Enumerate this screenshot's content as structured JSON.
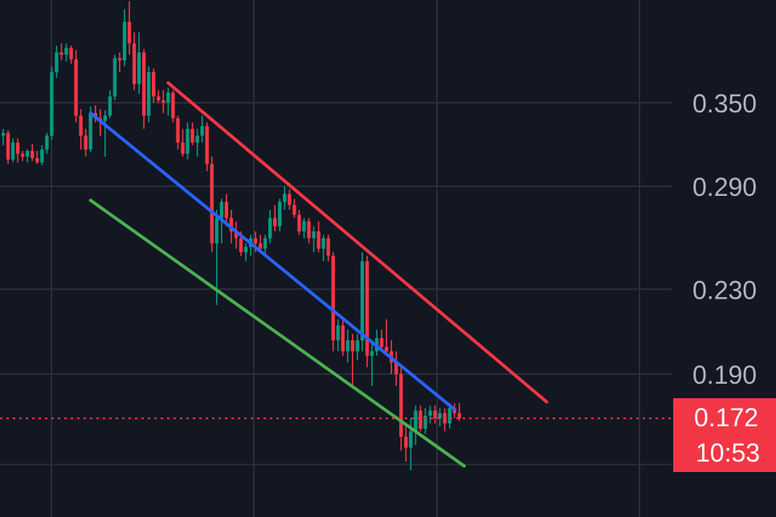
{
  "chart_data": {
    "type": "candlestick",
    "y_scale": "log",
    "ylim": [
      0.155,
      0.445
    ],
    "grid": true,
    "y_ticks": [
      {
        "value": 0.35,
        "label": "0.350"
      },
      {
        "value": 0.29,
        "label": "0.290"
      },
      {
        "value": 0.23,
        "label": "0.230"
      },
      {
        "value": 0.19,
        "label": "0.190"
      }
    ],
    "last_price": {
      "value": 0.172,
      "label": "0.172",
      "countdown": "10:53",
      "color": "#f23645"
    },
    "colors": {
      "up": "#089981",
      "down": "#f23645",
      "grid": "#2a2e39",
      "background": "#131722"
    },
    "candles": [
      [
        0.325,
        0.33,
        0.318,
        0.327
      ],
      [
        0.327,
        0.329,
        0.305,
        0.308
      ],
      [
        0.308,
        0.323,
        0.306,
        0.32
      ],
      [
        0.32,
        0.323,
        0.306,
        0.312
      ],
      [
        0.312,
        0.314,
        0.307,
        0.31
      ],
      [
        0.31,
        0.315,
        0.306,
        0.314
      ],
      [
        0.314,
        0.319,
        0.307,
        0.309
      ],
      [
        0.309,
        0.314,
        0.305,
        0.306
      ],
      [
        0.306,
        0.318,
        0.304,
        0.315
      ],
      [
        0.315,
        0.327,
        0.312,
        0.325
      ],
      [
        0.325,
        0.38,
        0.322,
        0.375
      ],
      [
        0.375,
        0.398,
        0.37,
        0.392
      ],
      [
        0.392,
        0.4,
        0.385,
        0.39
      ],
      [
        0.39,
        0.4,
        0.384,
        0.396
      ],
      [
        0.396,
        0.398,
        0.382,
        0.386
      ],
      [
        0.386,
        0.394,
        0.335,
        0.34
      ],
      [
        0.34,
        0.345,
        0.315,
        0.325
      ],
      [
        0.325,
        0.33,
        0.31,
        0.315
      ],
      [
        0.315,
        0.347,
        0.313,
        0.342
      ],
      [
        0.342,
        0.348,
        0.335,
        0.338
      ],
      [
        0.338,
        0.345,
        0.325,
        0.336
      ],
      [
        0.336,
        0.344,
        0.31,
        0.34
      ],
      [
        0.34,
        0.36,
        0.338,
        0.355
      ],
      [
        0.355,
        0.39,
        0.352,
        0.387
      ],
      [
        0.387,
        0.392,
        0.375,
        0.385
      ],
      [
        0.385,
        0.432,
        0.38,
        0.42
      ],
      [
        0.42,
        0.44,
        0.39,
        0.4
      ],
      [
        0.4,
        0.41,
        0.36,
        0.365
      ],
      [
        0.365,
        0.41,
        0.357,
        0.392
      ],
      [
        0.392,
        0.395,
        0.33,
        0.34
      ],
      [
        0.34,
        0.38,
        0.335,
        0.375
      ],
      [
        0.375,
        0.378,
        0.35,
        0.355
      ],
      [
        0.355,
        0.36,
        0.35,
        0.352
      ],
      [
        0.352,
        0.36,
        0.342,
        0.35
      ],
      [
        0.35,
        0.362,
        0.34,
        0.358
      ],
      [
        0.358,
        0.36,
        0.335,
        0.338
      ],
      [
        0.338,
        0.34,
        0.315,
        0.32
      ],
      [
        0.32,
        0.33,
        0.31,
        0.312
      ],
      [
        0.312,
        0.335,
        0.308,
        0.33
      ],
      [
        0.33,
        0.335,
        0.318,
        0.32
      ],
      [
        0.32,
        0.33,
        0.31,
        0.325
      ],
      [
        0.325,
        0.34,
        0.32,
        0.332
      ],
      [
        0.332,
        0.335,
        0.3,
        0.305
      ],
      [
        0.305,
        0.31,
        0.25,
        0.255
      ],
      [
        0.255,
        0.275,
        0.222,
        0.27
      ],
      [
        0.27,
        0.282,
        0.255,
        0.28
      ],
      [
        0.28,
        0.285,
        0.265,
        0.27
      ],
      [
        0.27,
        0.275,
        0.255,
        0.262
      ],
      [
        0.262,
        0.268,
        0.252,
        0.258
      ],
      [
        0.258,
        0.262,
        0.248,
        0.25
      ],
      [
        0.25,
        0.255,
        0.245,
        0.253
      ],
      [
        0.253,
        0.26,
        0.248,
        0.258
      ],
      [
        0.258,
        0.262,
        0.25,
        0.255
      ],
      [
        0.255,
        0.26,
        0.25,
        0.252
      ],
      [
        0.252,
        0.26,
        0.248,
        0.258
      ],
      [
        0.258,
        0.275,
        0.255,
        0.27
      ],
      [
        0.27,
        0.278,
        0.262,
        0.265
      ],
      [
        0.265,
        0.282,
        0.262,
        0.28
      ],
      [
        0.28,
        0.29,
        0.275,
        0.285
      ],
      [
        0.285,
        0.288,
        0.275,
        0.278
      ],
      [
        0.278,
        0.282,
        0.27,
        0.272
      ],
      [
        0.272,
        0.275,
        0.26,
        0.262
      ],
      [
        0.262,
        0.27,
        0.258,
        0.268
      ],
      [
        0.268,
        0.27,
        0.255,
        0.258
      ],
      [
        0.258,
        0.265,
        0.25,
        0.262
      ],
      [
        0.262,
        0.268,
        0.25,
        0.252
      ],
      [
        0.252,
        0.26,
        0.245,
        0.258
      ],
      [
        0.258,
        0.26,
        0.245,
        0.248
      ],
      [
        0.248,
        0.25,
        0.2,
        0.205
      ],
      [
        0.205,
        0.215,
        0.2,
        0.212
      ],
      [
        0.212,
        0.215,
        0.198,
        0.2
      ],
      [
        0.2,
        0.21,
        0.195,
        0.205
      ],
      [
        0.205,
        0.208,
        0.185,
        0.2
      ],
      [
        0.2,
        0.208,
        0.196,
        0.205
      ],
      [
        0.205,
        0.25,
        0.2,
        0.245
      ],
      [
        0.245,
        0.248,
        0.193,
        0.198
      ],
      [
        0.198,
        0.205,
        0.185,
        0.2
      ],
      [
        0.2,
        0.21,
        0.198,
        0.206
      ],
      [
        0.206,
        0.21,
        0.2,
        0.202
      ],
      [
        0.202,
        0.215,
        0.198,
        0.2
      ],
      [
        0.2,
        0.205,
        0.19,
        0.195
      ],
      [
        0.195,
        0.2,
        0.185,
        0.19
      ],
      [
        0.19,
        0.193,
        0.16,
        0.165
      ],
      [
        0.165,
        0.17,
        0.156,
        0.161
      ],
      [
        0.161,
        0.172,
        0.153,
        0.167
      ],
      [
        0.167,
        0.177,
        0.162,
        0.175
      ],
      [
        0.175,
        0.177,
        0.167,
        0.168
      ],
      [
        0.168,
        0.176,
        0.166,
        0.173
      ],
      [
        0.173,
        0.177,
        0.17,
        0.175
      ],
      [
        0.175,
        0.177,
        0.17,
        0.172
      ],
      [
        0.172,
        0.176,
        0.169,
        0.174
      ],
      [
        0.174,
        0.176,
        0.167,
        0.17
      ],
      [
        0.17,
        0.178,
        0.168,
        0.176
      ],
      [
        0.176,
        0.178,
        0.172,
        0.174
      ],
      [
        0.174,
        0.178,
        0.171,
        0.172
      ]
    ],
    "trendlines": [
      {
        "color": "#f23645",
        "from": {
          "candle": 34,
          "price": 0.366
        },
        "to": {
          "candle": 112,
          "price": 0.1785
        }
      },
      {
        "color": "#2962ff",
        "from": {
          "candle": 18,
          "price": 0.342
        },
        "to": {
          "candle": 93,
          "price": 0.1755
        }
      },
      {
        "color": "#4caf50",
        "from": {
          "candle": 18,
          "price": 0.281
        },
        "to": {
          "candle": 95,
          "price": 0.1545
        }
      }
    ]
  }
}
